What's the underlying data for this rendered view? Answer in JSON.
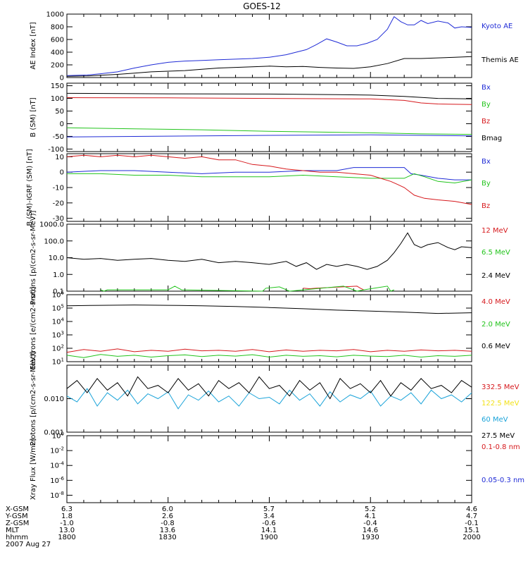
{
  "title": "GOES-12",
  "date_label": "2007 Aug 27",
  "colors": {
    "black": "#000000",
    "blue": "#1f2bd6",
    "green": "#22c41c",
    "red": "#d6181c",
    "cyan": "#1aa3d9",
    "yellow": "#f2e21a"
  },
  "chart_data": [
    {
      "type": "line",
      "name": "ae-index",
      "ylabel": "AE Index [nT]",
      "ylim": [
        0,
        1000
      ],
      "ticks": [
        {
          "v": 0,
          "label": "0"
        },
        {
          "v": 200,
          "label": "200"
        },
        {
          "v": 400,
          "label": "400"
        },
        {
          "v": 600,
          "label": "600"
        },
        {
          "v": 800,
          "label": "800"
        },
        {
          "v": 1000,
          "label": "1000"
        }
      ],
      "series": [
        {
          "name": "Kyoto AE",
          "color": "blue",
          "x": [
            1800,
            1806,
            1810,
            1815,
            1820,
            1825,
            1830,
            1835,
            1840,
            1845,
            1850,
            1855,
            1900,
            1905,
            1908,
            1911,
            1914,
            1917,
            1920,
            1923,
            1926,
            1929,
            1932,
            1935,
            1937,
            1939,
            1941,
            1943,
            1945,
            1947,
            1950,
            1953,
            1955,
            1957,
            1960
          ],
          "y": [
            30,
            40,
            60,
            90,
            150,
            200,
            240,
            260,
            270,
            280,
            290,
            300,
            320,
            360,
            400,
            440,
            520,
            610,
            560,
            500,
            500,
            540,
            600,
            760,
            960,
            880,
            830,
            830,
            900,
            850,
            890,
            860,
            780,
            800,
            790
          ]
        },
        {
          "name": "Themis AE",
          "color": "black",
          "x": [
            1800,
            1806,
            1810,
            1815,
            1820,
            1825,
            1830,
            1835,
            1840,
            1845,
            1850,
            1855,
            1900,
            1905,
            1910,
            1915,
            1920,
            1925,
            1930,
            1935,
            1940,
            1945,
            1950,
            1955,
            1960
          ],
          "y": [
            20,
            25,
            35,
            50,
            70,
            90,
            100,
            110,
            130,
            150,
            160,
            170,
            180,
            170,
            175,
            160,
            150,
            145,
            170,
            220,
            300,
            300,
            310,
            320,
            330
          ]
        }
      ]
    },
    {
      "type": "line",
      "name": "b-sm",
      "ylabel": "B (SM) [nT]",
      "ylim": [
        -110,
        160
      ],
      "ticks": [
        {
          "v": -100,
          "label": "-100"
        },
        {
          "v": -50,
          "label": "-50"
        },
        {
          "v": 0,
          "label": "0"
        },
        {
          "v": 50,
          "label": "50"
        },
        {
          "v": 100,
          "label": "100"
        },
        {
          "v": 150,
          "label": "150"
        }
      ],
      "series": [
        {
          "name": "Bx",
          "color": "blue",
          "x": [
            1800,
            1830,
            1900,
            1930,
            1960
          ],
          "y": [
            -52,
            -49,
            -46,
            -44,
            -48
          ]
        },
        {
          "name": "By",
          "color": "green",
          "x": [
            1800,
            1820,
            1840,
            1900,
            1930,
            1945,
            1960
          ],
          "y": [
            -16,
            -20,
            -24,
            -30,
            -36,
            -40,
            -42
          ]
        },
        {
          "name": "Bz",
          "color": "red",
          "x": [
            1800,
            1830,
            1900,
            1930,
            1940,
            1945,
            1950,
            1960
          ],
          "y": [
            103,
            102,
            100,
            98,
            92,
            82,
            78,
            76
          ]
        },
        {
          "name": "Bmag",
          "color": "black",
          "x": [
            1800,
            1830,
            1900,
            1920,
            1930,
            1940,
            1950,
            1960
          ],
          "y": [
            120,
            118,
            117,
            115,
            113,
            108,
            100,
            98
          ]
        }
      ]
    },
    {
      "type": "line",
      "name": "b-minus-igrf",
      "ylabel": "B (SM)-IGRF (SM) [nT]",
      "ylim": [
        -32,
        12
      ],
      "ticks": [
        {
          "v": -30,
          "label": "-30"
        },
        {
          "v": -20,
          "label": "-20"
        },
        {
          "v": -10,
          "label": "-10"
        },
        {
          "v": 0,
          "label": "0"
        },
        {
          "v": 10,
          "label": "10"
        }
      ],
      "series": [
        {
          "name": "Bx",
          "color": "blue",
          "x": [
            1800,
            1810,
            1820,
            1830,
            1840,
            1850,
            1900,
            1910,
            1920,
            1925,
            1930,
            1935,
            1940,
            1942,
            1945,
            1950,
            1955,
            1960
          ],
          "y": [
            0,
            1,
            1,
            0,
            -1,
            0,
            0,
            1,
            1,
            3,
            3,
            3,
            3,
            -1,
            -2,
            -4,
            -5,
            -5
          ]
        },
        {
          "name": "By",
          "color": "green",
          "x": [
            1800,
            1810,
            1820,
            1830,
            1840,
            1850,
            1900,
            1910,
            1920,
            1930,
            1940,
            1943,
            1946,
            1950,
            1955,
            1960
          ],
          "y": [
            -1,
            -1,
            -2,
            -2,
            -3,
            -3,
            -3,
            -2,
            -3,
            -4,
            -4,
            -1,
            -3,
            -6,
            -7,
            -5
          ]
        },
        {
          "name": "Bz",
          "color": "red",
          "x": [
            1800,
            1805,
            1810,
            1815,
            1820,
            1825,
            1830,
            1835,
            1840,
            1845,
            1850,
            1855,
            1900,
            1905,
            1910,
            1915,
            1920,
            1925,
            1930,
            1933,
            1936,
            1938,
            1940,
            1943,
            1946,
            1950,
            1955,
            1960
          ],
          "y": [
            10,
            11,
            10,
            11,
            10,
            11,
            10,
            9,
            10,
            8,
            8,
            5,
            4,
            2,
            1,
            0,
            0,
            -1,
            -2,
            -4,
            -6,
            -8,
            -10,
            -15,
            -17,
            -18,
            -19,
            -21
          ]
        }
      ]
    },
    {
      "type": "line",
      "name": "protons-eps",
      "ylabel": "Protons [p/(cm2-s-sr-MeV)]",
      "yscale": "log",
      "ylim": [
        0.1,
        1000
      ],
      "ticks": [
        {
          "v": 0.1,
          "label": "0.1"
        },
        {
          "v": 1,
          "label": "1.0"
        },
        {
          "v": 10,
          "label": "10.0"
        },
        {
          "v": 100,
          "label": "100.0"
        },
        {
          "v": 1000,
          "label": "1000.0"
        }
      ],
      "series": [
        {
          "name": "12 MeV",
          "color": "red",
          "x": [
            1910,
            1912,
            1914,
            1926,
            1927,
            1928
          ],
          "y": [
            0.15,
            0.14,
            0.15,
            0.2,
            0.15,
            0.12
          ]
        },
        {
          "name": "6.5 MeV",
          "color": "green",
          "x": [
            1810,
            1811,
            1812,
            1830,
            1832,
            1834,
            1858,
            1859,
            1903,
            1906,
            1922,
            1926,
            1928,
            1935,
            1936,
            1937
          ],
          "y": [
            0.12,
            0.1,
            0.12,
            0.12,
            0.2,
            0.12,
            0.1,
            0.15,
            0.18,
            0.1,
            0.2,
            0.1,
            0.12,
            0.2,
            0.1,
            0.12
          ]
        },
        {
          "name": "2.4 MeV",
          "color": "black",
          "x": [
            1800,
            1805,
            1810,
            1815,
            1820,
            1825,
            1830,
            1835,
            1840,
            1845,
            1850,
            1855,
            1900,
            1905,
            1908,
            1911,
            1914,
            1917,
            1920,
            1923,
            1926,
            1929,
            1932,
            1935,
            1937,
            1939,
            1941,
            1943,
            1945,
            1947,
            1950,
            1953,
            1955,
            1957,
            1960
          ],
          "y": [
            10,
            8,
            9,
            7,
            8,
            9,
            7,
            6,
            8,
            5,
            6,
            5,
            4,
            6,
            3,
            5,
            2,
            4,
            3,
            4,
            3,
            2,
            3,
            7,
            20,
            70,
            300,
            60,
            40,
            60,
            80,
            40,
            30,
            45,
            40
          ]
        }
      ]
    },
    {
      "type": "line",
      "name": "electrons",
      "ylabel": "Electrons [e/(cm2-s-sr)]",
      "yscale": "log",
      "ylim": [
        10,
        1000000
      ],
      "ticks": [
        {
          "v": 10,
          "label": "10^1"
        },
        {
          "v": 100,
          "label": "10^2"
        },
        {
          "v": 1000,
          "label": "10^3"
        },
        {
          "v": 10000,
          "label": "10^4"
        },
        {
          "v": 100000,
          "label": "10^5"
        },
        {
          "v": 1000000,
          "label": "10^6"
        }
      ],
      "series": [
        {
          "name": "4.0 MeV",
          "color": "red",
          "x": [
            1800,
            1805,
            1810,
            1815,
            1820,
            1825,
            1830,
            1835,
            1840,
            1845,
            1850,
            1855,
            1900,
            1905,
            1910,
            1915,
            1920,
            1925,
            1930,
            1935,
            1940,
            1945,
            1950,
            1955,
            1960
          ],
          "y": [
            50,
            80,
            60,
            90,
            55,
            70,
            60,
            85,
            65,
            70,
            60,
            80,
            55,
            75,
            60,
            70,
            65,
            80,
            55,
            70,
            60,
            75,
            65,
            70,
            60
          ]
        },
        {
          "name": "2.0 MeV",
          "color": "green",
          "x": [
            1800,
            1805,
            1810,
            1815,
            1820,
            1825,
            1830,
            1835,
            1840,
            1845,
            1850,
            1855,
            1900,
            1905,
            1910,
            1915,
            1920,
            1925,
            1930,
            1935,
            1940,
            1945,
            1950,
            1955,
            1960
          ],
          "y": [
            30,
            20,
            35,
            25,
            30,
            22,
            28,
            32,
            24,
            30,
            26,
            33,
            22,
            30,
            25,
            28,
            23,
            30,
            26,
            24,
            30,
            22,
            28,
            25,
            30
          ]
        },
        {
          "name": "0.6 MeV",
          "color": "black",
          "x": [
            1800,
            1810,
            1820,
            1830,
            1840,
            1850,
            1900,
            1910,
            1920,
            1930,
            1940,
            1950,
            1960
          ],
          "y": [
            150000,
            160000,
            170000,
            160000,
            150000,
            130000,
            110000,
            90000,
            70000,
            60000,
            50000,
            40000,
            45000
          ]
        }
      ]
    },
    {
      "type": "line",
      "name": "protons-hepad",
      "ylabel": "Protons [p/(cm2-s-sr-MeV)]",
      "yscale": "log",
      "ylim": [
        0.001,
        0.1
      ],
      "ticks": [
        {
          "v": 0.001,
          "label": "0.001"
        },
        {
          "v": 0.01,
          "label": "0.010"
        }
      ],
      "series": [
        {
          "name": "332.5 MeV",
          "color": "red",
          "x": [],
          "y": []
        },
        {
          "name": "122.5 MeV",
          "color": "yellow",
          "x": [],
          "y": []
        },
        {
          "name": "60 MeV",
          "color": "cyan",
          "x": [
            1800,
            1803,
            1806,
            1809,
            1812,
            1815,
            1818,
            1821,
            1824,
            1827,
            1830,
            1833,
            1836,
            1839,
            1842,
            1845,
            1848,
            1851,
            1854,
            1857,
            1900,
            1903,
            1906,
            1909,
            1912,
            1915,
            1918,
            1921,
            1924,
            1927,
            1930,
            1933,
            1936,
            1939,
            1942,
            1945,
            1948,
            1951,
            1954,
            1957,
            1960
          ],
          "y": [
            0.012,
            0.008,
            0.02,
            0.006,
            0.015,
            0.009,
            0.018,
            0.007,
            0.014,
            0.01,
            0.016,
            0.005,
            0.013,
            0.009,
            0.017,
            0.008,
            0.012,
            0.006,
            0.015,
            0.01,
            0.011,
            0.007,
            0.018,
            0.009,
            0.014,
            0.006,
            0.016,
            0.008,
            0.013,
            0.01,
            0.017,
            0.006,
            0.012,
            0.009,
            0.015,
            0.007,
            0.018,
            0.01,
            0.013,
            0.008,
            0.015
          ]
        },
        {
          "name": "27.5 MeV",
          "color": "black",
          "x": [
            1800,
            1803,
            1806,
            1809,
            1812,
            1815,
            1818,
            1821,
            1824,
            1827,
            1830,
            1833,
            1836,
            1839,
            1842,
            1845,
            1848,
            1851,
            1854,
            1857,
            1900,
            1903,
            1906,
            1909,
            1912,
            1915,
            1918,
            1921,
            1924,
            1927,
            1930,
            1933,
            1936,
            1939,
            1942,
            1945,
            1948,
            1951,
            1954,
            1957,
            1960
          ],
          "y": [
            0.02,
            0.035,
            0.015,
            0.04,
            0.018,
            0.03,
            0.012,
            0.045,
            0.02,
            0.025,
            0.015,
            0.04,
            0.018,
            0.028,
            0.012,
            0.035,
            0.02,
            0.03,
            0.015,
            0.045,
            0.02,
            0.025,
            0.012,
            0.035,
            0.018,
            0.03,
            0.01,
            0.04,
            0.02,
            0.028,
            0.015,
            0.035,
            0.012,
            0.03,
            0.018,
            0.04,
            0.02,
            0.025,
            0.015,
            0.035,
            0.022
          ]
        }
      ]
    },
    {
      "type": "line",
      "name": "xray-flux",
      "ylabel": "Xray Flux [W/m2]",
      "yscale": "log",
      "ylim": [
        1e-09,
        1
      ],
      "ticks": [
        {
          "v": 1e-08,
          "label": "10^-8"
        },
        {
          "v": 1e-06,
          "label": "10^-6"
        },
        {
          "v": 0.0001,
          "label": "10^-4"
        },
        {
          "v": 0.01,
          "label": "10^-2"
        },
        {
          "v": 1,
          "label": "10^0"
        }
      ],
      "series": [
        {
          "name": "0.1-0.8 nm",
          "color": "red",
          "x": [],
          "y": []
        },
        {
          "name": "0.05-0.3 nm",
          "color": "blue",
          "x": [],
          "y": []
        }
      ]
    }
  ],
  "x_axis": {
    "rows": [
      {
        "label": "X-GSM",
        "values": [
          "6.3",
          "6.0",
          "5.7",
          "5.2",
          "4.6"
        ]
      },
      {
        "label": "Y-GSM",
        "values": [
          "1.8",
          "2.6",
          "3.4",
          "4.1",
          "4.7"
        ]
      },
      {
        "label": "Z-GSM",
        "values": [
          "-1.0",
          "-0.8",
          "-0.6",
          "-0.4",
          "-0.1"
        ]
      },
      {
        "label": "MLT",
        "values": [
          "13.0",
          "13.6",
          "14.1",
          "14.6",
          "15.1"
        ]
      },
      {
        "label": "hhmm",
        "values": [
          "1800",
          "1830",
          "1900",
          "1930",
          "2000"
        ]
      }
    ]
  }
}
